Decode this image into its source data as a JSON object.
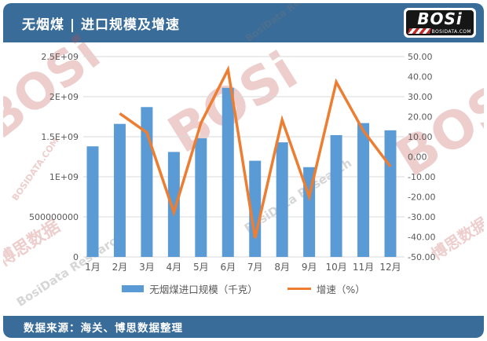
{
  "header": {
    "title": "无烟煤 | 进口规模及增速",
    "logo": {
      "text": "BOSi",
      "domain": "BOSIDATA.COM"
    }
  },
  "footer": {
    "source": "数据来源：海关、博思数据整理"
  },
  "watermark": {
    "brand": "BOSi",
    "cn": "博思数据",
    "en": "BosiData Research",
    "domain": "BOSIDATA.COM"
  },
  "colors": {
    "header_bg": "#3a6c99",
    "bar": "#5B9BD5",
    "line": "#ED7D31",
    "grid": "#d9d9d9",
    "axis_text": "#595959"
  },
  "chart_data": {
    "type": "combo",
    "title": "无烟煤 | 进口规模及增速",
    "categories": [
      "1月",
      "2月",
      "3月",
      "4月",
      "5月",
      "6月",
      "7月",
      "8月",
      "9月",
      "10月",
      "11月",
      "12月"
    ],
    "series": [
      {
        "name": "无烟煤进口规模（千克）",
        "type": "bar",
        "axis": "left",
        "color": "#5B9BD5",
        "values": [
          1380000000,
          1660000000,
          1870000000,
          1310000000,
          1480000000,
          2110000000,
          1200000000,
          1430000000,
          1120000000,
          1520000000,
          1670000000,
          1580000000
        ]
      },
      {
        "name": "增速（%）",
        "type": "line",
        "axis": "right",
        "color": "#ED7D31",
        "values": [
          null,
          21.6,
          12.1,
          -27.8,
          16.8,
          43.5,
          -40.6,
          18.4,
          -20.0,
          37.3,
          13.0,
          -4.9
        ]
      }
    ],
    "left_axis": {
      "min": 0,
      "max": 2500000000,
      "ticks": [
        "0",
        "500000000",
        "1E+09",
        "1.5E+09",
        "2E+09",
        "2.5E+09"
      ]
    },
    "right_axis": {
      "min": -50,
      "max": 50,
      "ticks": [
        "-50.00",
        "-40.00",
        "-30.00",
        "-20.00",
        "-10.00",
        "0.00",
        "10.00",
        "20.00",
        "30.00",
        "40.00",
        "50.00"
      ]
    },
    "grid": true,
    "legend_position": "bottom"
  }
}
